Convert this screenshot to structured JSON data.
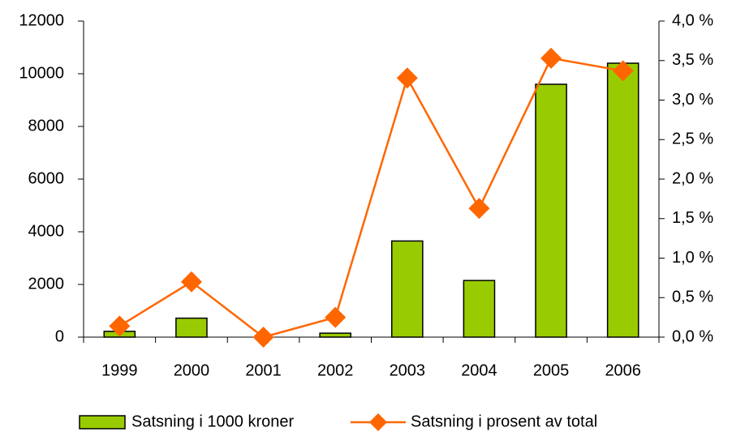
{
  "chart_data": {
    "type": "bar",
    "categories": [
      "1999",
      "2000",
      "2001",
      "2002",
      "2003",
      "2004",
      "2005",
      "2006"
    ],
    "series": [
      {
        "name": "Satsning i 1000 kroner",
        "color": "#99cc00",
        "type": "bar",
        "values": [
          220,
          720,
          0,
          150,
          3650,
          2150,
          9600,
          10400
        ]
      },
      {
        "name": "Satsning i prosent av total",
        "color": "#ff6600",
        "type": "line",
        "axis": "y2",
        "values": [
          0.14,
          0.7,
          0.0,
          0.25,
          3.28,
          1.63,
          3.53,
          3.37
        ]
      }
    ],
    "ylim": [
      0,
      12000
    ],
    "yticks": [
      0,
      2000,
      4000,
      6000,
      8000,
      10000,
      12000
    ],
    "y2lim": [
      0,
      4
    ],
    "y2ticks": [
      {
        "value": 0,
        "label": "0,0 %"
      },
      {
        "value": 0.5,
        "label": "0,5 %"
      },
      {
        "value": 1,
        "label": "1,0 %"
      },
      {
        "value": 1.5,
        "label": "1,5 %"
      },
      {
        "value": 2,
        "label": "2,0 %"
      },
      {
        "value": 2.5,
        "label": "2,5 %"
      },
      {
        "value": 3,
        "label": "3,0 %"
      },
      {
        "value": 3.5,
        "label": "3,5 %"
      },
      {
        "value": 4,
        "label": "4,0 %"
      }
    ],
    "grid": false,
    "legend": "bottom"
  }
}
